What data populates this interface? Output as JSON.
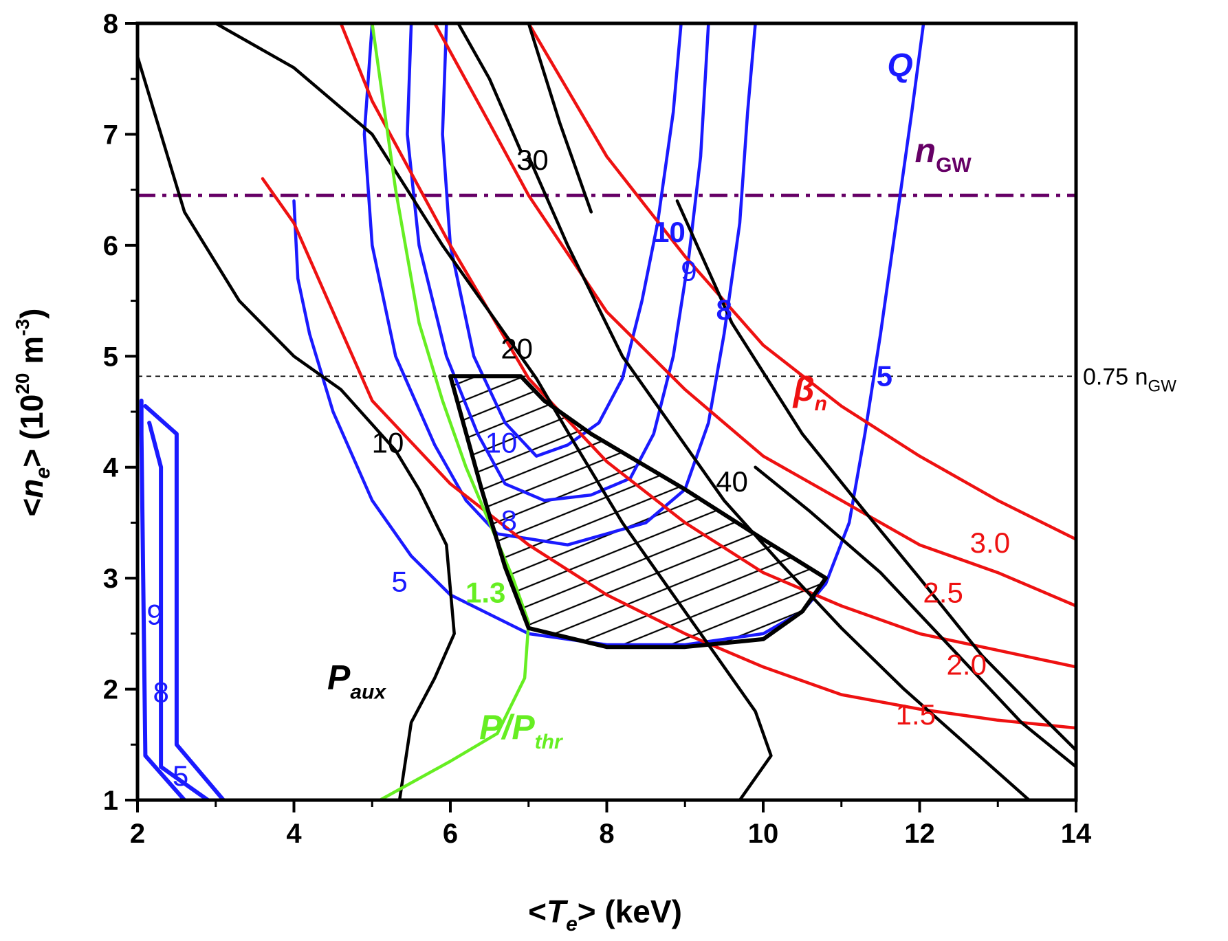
{
  "chart_data": {
    "type": "line",
    "title": "",
    "x_axis": {
      "label_parts": [
        "<",
        "T",
        "e",
        "> (keV)"
      ],
      "range": [
        2,
        14
      ],
      "ticks": [
        "2",
        "4",
        "6",
        "8",
        "10",
        "12",
        "14"
      ],
      "tick_values": [
        2,
        4,
        6,
        8,
        10,
        12,
        14
      ]
    },
    "y_axis": {
      "label_parts": [
        "<",
        "n",
        "e",
        "> (10",
        "20",
        " m",
        "-3",
        ")"
      ],
      "range": [
        1,
        8
      ],
      "ticks": [
        "1",
        "2",
        "3",
        "4",
        "5",
        "6",
        "7",
        "8"
      ],
      "tick_values": [
        1,
        2,
        3,
        4,
        5,
        6,
        7,
        8
      ]
    },
    "colors": {
      "q": "#1a1aff",
      "beta": "#ee1111",
      "paux": "#000000",
      "pthr": "#66ee22",
      "ngw": "#660066",
      "region": "#000000"
    },
    "families": {
      "q": {
        "label": "Q"
      },
      "beta": {
        "label": "β",
        "sub": "n"
      },
      "paux": {
        "label": "P",
        "sub": "aux"
      },
      "pthr": {
        "label": "P/P",
        "sub": "thr"
      },
      "ngw": {
        "label": "n",
        "sub": "GW"
      }
    },
    "reference_lines": [
      {
        "name": "n_GW",
        "y": 6.45,
        "style": "dash-dot",
        "color": "#660066"
      },
      {
        "name": "0.75 n_GW",
        "y": 4.82,
        "style": "dashed",
        "color": "#000000",
        "label": "0.75 n",
        "label_sub": "GW"
      }
    ],
    "series": [
      {
        "family": "q",
        "level": "5",
        "points": [
          [
            4,
            6.4
          ],
          [
            4.05,
            5.7
          ],
          [
            4.2,
            5.2
          ],
          [
            4.5,
            4.5
          ],
          [
            5,
            3.7
          ],
          [
            5.5,
            3.2
          ],
          [
            6,
            2.85
          ],
          [
            7,
            2.5
          ],
          [
            8,
            2.4
          ],
          [
            9,
            2.4
          ],
          [
            10,
            2.5
          ],
          [
            10.5,
            2.7
          ],
          [
            10.8,
            2.95
          ],
          [
            11.1,
            3.5
          ],
          [
            11.3,
            4.3
          ],
          [
            11.5,
            5.2
          ],
          [
            11.7,
            6.2
          ],
          [
            11.9,
            7.2
          ],
          [
            12.05,
            8.0
          ]
        ]
      },
      {
        "family": "q",
        "level": "8",
        "points": [
          [
            5.0,
            8.0
          ],
          [
            4.9,
            7.0
          ],
          [
            5.0,
            6.0
          ],
          [
            5.3,
            5.0
          ],
          [
            5.8,
            4.2
          ],
          [
            6.2,
            3.7
          ],
          [
            6.6,
            3.4
          ],
          [
            7.5,
            3.3
          ],
          [
            8.5,
            3.5
          ],
          [
            9.0,
            3.8
          ],
          [
            9.3,
            4.4
          ],
          [
            9.5,
            5.2
          ],
          [
            9.7,
            6.2
          ],
          [
            9.8,
            7.2
          ],
          [
            9.9,
            8.0
          ]
        ]
      },
      {
        "family": "q",
        "level": "9",
        "points": [
          [
            5.5,
            8.0
          ],
          [
            5.45,
            7.0
          ],
          [
            5.6,
            6.0
          ],
          [
            5.95,
            5.0
          ],
          [
            6.35,
            4.3
          ],
          [
            6.7,
            3.85
          ],
          [
            7.2,
            3.7
          ],
          [
            7.8,
            3.75
          ],
          [
            8.3,
            3.9
          ],
          [
            8.6,
            4.3
          ],
          [
            8.85,
            5.0
          ],
          [
            9.05,
            5.9
          ],
          [
            9.2,
            6.8
          ],
          [
            9.3,
            8.0
          ]
        ]
      },
      {
        "family": "q",
        "level": "10",
        "points": [
          [
            5.95,
            8.0
          ],
          [
            5.9,
            7.0
          ],
          [
            6.0,
            6.0
          ],
          [
            6.3,
            5.0
          ],
          [
            6.7,
            4.4
          ],
          [
            7.1,
            4.1
          ],
          [
            7.5,
            4.2
          ],
          [
            7.9,
            4.4
          ],
          [
            8.2,
            4.8
          ],
          [
            8.45,
            5.5
          ],
          [
            8.65,
            6.2
          ],
          [
            8.85,
            7.2
          ],
          [
            8.95,
            8.0
          ]
        ]
      },
      {
        "family": "q",
        "level": "",
        "points": [
          [
            2.05,
            4.6
          ],
          [
            2.05,
            4.3
          ],
          [
            2.1,
            1.4
          ],
          [
            2.6,
            1.0
          ]
        ]
      },
      {
        "family": "q",
        "level": "",
        "points": [
          [
            2.1,
            4.55
          ],
          [
            2.5,
            4.3
          ],
          [
            2.5,
            1.5
          ],
          [
            3.1,
            1.0
          ]
        ]
      },
      {
        "family": "q",
        "level": "",
        "points": [
          [
            2.15,
            4.4
          ],
          [
            2.3,
            4.0
          ],
          [
            2.3,
            1.3
          ],
          [
            2.9,
            1.0
          ]
        ]
      },
      {
        "family": "beta",
        "level": "1.5",
        "points": [
          [
            3.6,
            6.6
          ],
          [
            4.0,
            6.2
          ],
          [
            5.0,
            4.6
          ],
          [
            6.0,
            3.85
          ],
          [
            7.0,
            3.3
          ],
          [
            8.0,
            2.85
          ],
          [
            9.0,
            2.5
          ],
          [
            10.0,
            2.2
          ],
          [
            11.0,
            1.95
          ],
          [
            12.0,
            1.82
          ],
          [
            13.0,
            1.72
          ],
          [
            14.0,
            1.65
          ]
        ]
      },
      {
        "family": "beta",
        "level": "2.0",
        "points": [
          [
            4.6,
            8.0
          ],
          [
            5.0,
            7.3
          ],
          [
            6.0,
            6.0
          ],
          [
            7.0,
            4.8
          ],
          [
            8.0,
            4.05
          ],
          [
            9.0,
            3.5
          ],
          [
            10.0,
            3.05
          ],
          [
            11.0,
            2.75
          ],
          [
            12.0,
            2.5
          ],
          [
            13.0,
            2.35
          ],
          [
            14.0,
            2.2
          ]
        ]
      },
      {
        "family": "beta",
        "level": "2.5",
        "points": [
          [
            5.8,
            8.0
          ],
          [
            6.5,
            7.1
          ],
          [
            7.0,
            6.45
          ],
          [
            8.0,
            5.4
          ],
          [
            9.0,
            4.7
          ],
          [
            10.0,
            4.1
          ],
          [
            11.0,
            3.7
          ],
          [
            12.0,
            3.3
          ],
          [
            13.0,
            3.05
          ],
          [
            14.0,
            2.75
          ]
        ]
      },
      {
        "family": "beta",
        "level": "3.0",
        "points": [
          [
            7.0,
            8.0
          ],
          [
            8.0,
            6.8
          ],
          [
            9.0,
            5.9
          ],
          [
            10.0,
            5.1
          ],
          [
            11.0,
            4.55
          ],
          [
            12.0,
            4.1
          ],
          [
            13.0,
            3.7
          ],
          [
            14.0,
            3.35
          ]
        ]
      },
      {
        "family": "paux",
        "level": "10",
        "points": [
          [
            2.0,
            7.7
          ],
          [
            2.6,
            6.3
          ],
          [
            3.3,
            5.5
          ],
          [
            4.0,
            5.0
          ],
          [
            4.6,
            4.7
          ],
          [
            5.3,
            4.15
          ],
          [
            5.6,
            3.8
          ],
          [
            5.95,
            3.3
          ],
          [
            6.05,
            2.5
          ],
          [
            5.8,
            2.1
          ],
          [
            5.5,
            1.7
          ],
          [
            5.35,
            1.0
          ]
        ]
      },
      {
        "family": "paux",
        "level": "20",
        "points": [
          [
            3.0,
            8.0
          ],
          [
            4.0,
            7.6
          ],
          [
            5.0,
            7.0
          ],
          [
            5.9,
            6.0
          ],
          [
            6.5,
            5.4
          ],
          [
            7.1,
            4.8
          ],
          [
            7.6,
            4.2
          ],
          [
            8.2,
            3.5
          ],
          [
            8.8,
            2.9
          ],
          [
            9.3,
            2.4
          ],
          [
            9.9,
            1.8
          ],
          [
            10.1,
            1.4
          ],
          [
            9.7,
            1.0
          ]
        ]
      },
      {
        "family": "paux",
        "level": "30",
        "points": [
          [
            7.0,
            6.8
          ],
          [
            7.5,
            6.0
          ],
          [
            8.2,
            5.0
          ],
          [
            8.8,
            4.4
          ],
          [
            9.5,
            3.7
          ],
          [
            10.2,
            3.15
          ],
          [
            11.0,
            2.55
          ],
          [
            11.8,
            2.0
          ],
          [
            12.6,
            1.5
          ],
          [
            13.4,
            1.0
          ]
        ]
      },
      {
        "family": "paux",
        "level": "40",
        "points": [
          [
            8.9,
            6.4
          ],
          [
            9.6,
            5.3
          ],
          [
            10.5,
            4.3
          ],
          [
            11.3,
            3.6
          ],
          [
            12.0,
            3.0
          ],
          [
            12.8,
            2.3
          ],
          [
            13.5,
            1.8
          ],
          [
            14.0,
            1.45
          ]
        ]
      },
      {
        "family": "paux",
        "level": "",
        "points": [
          [
            6.1,
            8.0
          ],
          [
            6.5,
            7.5
          ],
          [
            6.9,
            6.85
          ]
        ]
      },
      {
        "family": "paux",
        "level": "",
        "points": [
          [
            7.0,
            8.0
          ],
          [
            7.4,
            7.1
          ],
          [
            7.8,
            6.3
          ]
        ]
      },
      {
        "family": "paux",
        "level": "",
        "points": [
          [
            9.9,
            4.0
          ],
          [
            10.6,
            3.6
          ],
          [
            11.5,
            3.05
          ],
          [
            12.5,
            2.3
          ],
          [
            13.3,
            1.7
          ],
          [
            14.0,
            1.3
          ]
        ]
      },
      {
        "family": "pthr",
        "level": "1.3",
        "points": [
          [
            5.0,
            8.0
          ],
          [
            5.3,
            6.5
          ],
          [
            5.6,
            5.3
          ],
          [
            5.9,
            4.6
          ],
          [
            6.2,
            4.0
          ],
          [
            6.5,
            3.5
          ],
          [
            6.8,
            3.0
          ],
          [
            7.0,
            2.6
          ],
          [
            6.95,
            2.1
          ],
          [
            6.6,
            1.6
          ],
          [
            6.0,
            1.35
          ],
          [
            5.1,
            1.0
          ]
        ]
      }
    ],
    "curve_labels": [
      {
        "family": "q",
        "text": "Q",
        "x": 11.75,
        "y": 7.6,
        "style": "bold-italic"
      },
      {
        "family": "q",
        "text": "10",
        "x": 8.8,
        "y": 6.1,
        "style": "bold"
      },
      {
        "family": "q",
        "text": "9",
        "x": 9.05,
        "y": 5.75,
        "style": "normal"
      },
      {
        "family": "q",
        "text": "8",
        "x": 9.5,
        "y": 5.4,
        "style": "bold"
      },
      {
        "family": "q",
        "text": "5",
        "x": 11.55,
        "y": 4.8,
        "style": "bold"
      },
      {
        "family": "q",
        "text": "10",
        "x": 6.65,
        "y": 4.2,
        "style": "normal"
      },
      {
        "family": "q",
        "text": "8",
        "x": 6.75,
        "y": 3.5,
        "style": "normal"
      },
      {
        "family": "q",
        "text": "5",
        "x": 5.35,
        "y": 2.95,
        "style": "normal"
      },
      {
        "family": "q",
        "text": "9",
        "x": 2.22,
        "y": 2.65,
        "style": "normal"
      },
      {
        "family": "q",
        "text": "8",
        "x": 2.3,
        "y": 1.95,
        "style": "normal"
      },
      {
        "family": "q",
        "text": "5",
        "x": 2.55,
        "y": 1.2,
        "style": "normal"
      },
      {
        "family": "paux",
        "text": "30",
        "x": 7.05,
        "y": 6.75,
        "style": "normal"
      },
      {
        "family": "paux",
        "text": "20",
        "x": 6.85,
        "y": 5.05,
        "style": "normal"
      },
      {
        "family": "paux",
        "text": "10",
        "x": 5.2,
        "y": 4.2,
        "style": "normal"
      },
      {
        "family": "paux",
        "text": "40",
        "x": 9.6,
        "y": 3.85,
        "style": "normal"
      },
      {
        "family": "beta",
        "text": "3.0",
        "x": 12.9,
        "y": 3.3,
        "style": "normal"
      },
      {
        "family": "beta",
        "text": "2.5",
        "x": 12.3,
        "y": 2.85,
        "style": "normal"
      },
      {
        "family": "beta",
        "text": "2.0",
        "x": 12.6,
        "y": 2.2,
        "style": "normal"
      },
      {
        "family": "beta",
        "text": "1.5",
        "x": 11.95,
        "y": 1.75,
        "style": "normal"
      },
      {
        "family": "pthr",
        "text": "1.3",
        "x": 6.45,
        "y": 2.85,
        "style": "bold"
      }
    ],
    "family_labels": [
      {
        "family": "beta",
        "x": 10.6,
        "y": 4.6
      },
      {
        "family": "paux",
        "x": 4.8,
        "y": 2.0
      },
      {
        "family": "pthr",
        "x": 6.9,
        "y": 1.55
      },
      {
        "family": "ngw",
        "x": 12.3,
        "y": 6.75
      }
    ],
    "operating_region": {
      "fill": "hatched",
      "boundary": [
        [
          6.0,
          4.82
        ],
        [
          6.9,
          4.82
        ],
        [
          7.2,
          4.6
        ],
        [
          7.8,
          4.3
        ],
        [
          9.0,
          3.8
        ],
        [
          10.0,
          3.35
        ],
        [
          10.8,
          3.0
        ],
        [
          10.5,
          2.7
        ],
        [
          10.0,
          2.45
        ],
        [
          9.0,
          2.38
        ],
        [
          8.0,
          2.38
        ],
        [
          7.0,
          2.55
        ],
        [
          6.7,
          3.1
        ],
        [
          6.4,
          3.8
        ],
        [
          6.0,
          4.82
        ]
      ]
    }
  }
}
